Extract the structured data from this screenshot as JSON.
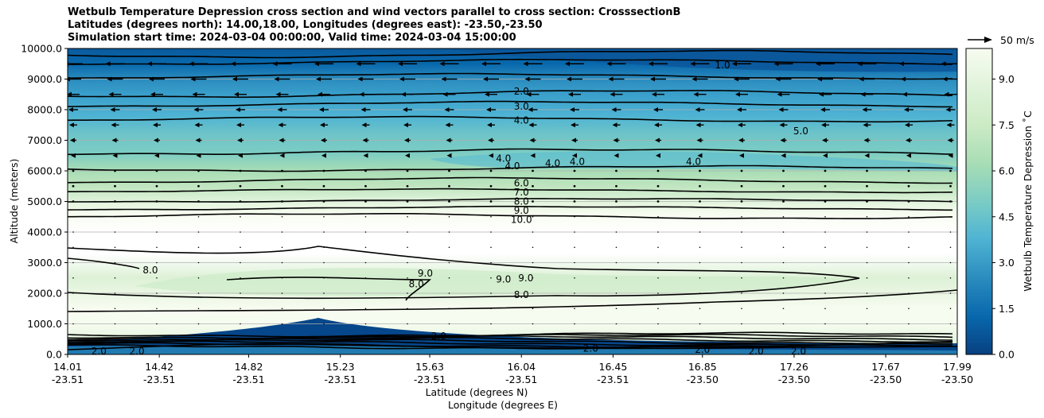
{
  "title_lines": [
    "Wetbulb Temperature Depression cross section and wind vectors parallel to cross section: CrosssectionB",
    "Latitudes (degrees north): 14.00,18.00, Longitudes (degrees east): -23.50,-23.50",
    "Simulation start time: 2024-03-04 00:00:00, Valid time: 2024-03-04 15:00:00"
  ],
  "chart_data": {
    "type": "heatmap",
    "ylabel": "Altitude (meters)",
    "xlabel_lat": "Latitude (degrees N)",
    "xlabel_lon": "Longitude (degrees E)",
    "ylim": [
      0,
      10000
    ],
    "y_ticks": [
      "0.0",
      "1000.0",
      "2000.0",
      "3000.0",
      "4000.0",
      "5000.0",
      "6000.0",
      "7000.0",
      "8000.0",
      "9000.0",
      "10000.0"
    ],
    "y_tick_values": [
      0,
      1000,
      2000,
      3000,
      4000,
      5000,
      6000,
      7000,
      8000,
      9000,
      10000
    ],
    "x_ticks_lat": [
      "14.01",
      "14.42",
      "14.82",
      "15.23",
      "15.63",
      "16.04",
      "16.45",
      "16.85",
      "17.26",
      "17.67",
      "17.99"
    ],
    "x_ticks_lon": [
      "-23.51",
      "-23.51",
      "-23.51",
      "-23.51",
      "-23.51",
      "-23.51",
      "-23.51",
      "-23.50",
      "-23.50",
      "-23.50",
      "-23.50"
    ],
    "x_tick_values": [
      14.01,
      14.42,
      14.82,
      15.23,
      15.63,
      16.04,
      16.45,
      16.85,
      17.26,
      17.67,
      17.99
    ],
    "xlim": [
      14.01,
      17.99
    ],
    "grid": "horizontal",
    "colorbar": {
      "label": "Wetbulb Temperature Depression ˚C",
      "ticks": [
        "0.0",
        "1.5",
        "3.0",
        "4.5",
        "6.0",
        "7.5",
        "9.0"
      ],
      "tick_values": [
        0,
        1.5,
        3,
        4.5,
        6,
        7.5,
        9
      ],
      "range": [
        0,
        10
      ],
      "colormap": "GnBu_r",
      "stops": [
        "#084081",
        "#0868ac",
        "#2b8cbe",
        "#4eb3d3",
        "#7bccc4",
        "#a8ddb5",
        "#ccebc5",
        "#e0f3db",
        "#f7fcf0"
      ]
    },
    "wind_key": {
      "label": "50 m/s",
      "speed": 50
    },
    "contour_labels": [
      {
        "text": "2.0",
        "x": 16.04,
        "y": 8600
      },
      {
        "text": "3.0",
        "x": 16.04,
        "y": 8100
      },
      {
        "text": "4.0",
        "x": 16.04,
        "y": 7650
      },
      {
        "text": "4.0",
        "x": 16.0,
        "y": 6150
      },
      {
        "text": "4.0",
        "x": 15.96,
        "y": 6400
      },
      {
        "text": "4.0",
        "x": 16.18,
        "y": 6250
      },
      {
        "text": "4.0",
        "x": 16.29,
        "y": 6300
      },
      {
        "text": "4.0",
        "x": 16.81,
        "y": 6300
      },
      {
        "text": "5.0",
        "x": 17.29,
        "y": 7300
      },
      {
        "text": "1.0",
        "x": 16.94,
        "y": 9450
      },
      {
        "text": "6.0",
        "x": 16.04,
        "y": 5600
      },
      {
        "text": "7.0",
        "x": 16.04,
        "y": 5300
      },
      {
        "text": "8.0",
        "x": 16.04,
        "y": 5000
      },
      {
        "text": "9.0",
        "x": 16.04,
        "y": 4700
      },
      {
        "text": "10.0",
        "x": 16.04,
        "y": 4400
      },
      {
        "text": "8.0",
        "x": 14.38,
        "y": 2750
      },
      {
        "text": "9.0",
        "x": 15.61,
        "y": 2650
      },
      {
        "text": "8.0",
        "x": 15.57,
        "y": 2300
      },
      {
        "text": "9.0",
        "x": 15.96,
        "y": 2450
      },
      {
        "text": "9.0",
        "x": 16.06,
        "y": 2500
      },
      {
        "text": "8.0",
        "x": 16.04,
        "y": 1950
      },
      {
        "text": "2.0",
        "x": 14.15,
        "y": 100
      },
      {
        "text": "2.0",
        "x": 14.32,
        "y": 100
      },
      {
        "text": "2.0",
        "x": 15.67,
        "y": 600
      },
      {
        "text": "2.0",
        "x": 16.35,
        "y": 200
      },
      {
        "text": "2.0",
        "x": 16.85,
        "y": 150
      },
      {
        "text": "2.0",
        "x": 17.09,
        "y": 100
      },
      {
        "text": "2.0",
        "x": 17.28,
        "y": 100
      }
    ]
  }
}
